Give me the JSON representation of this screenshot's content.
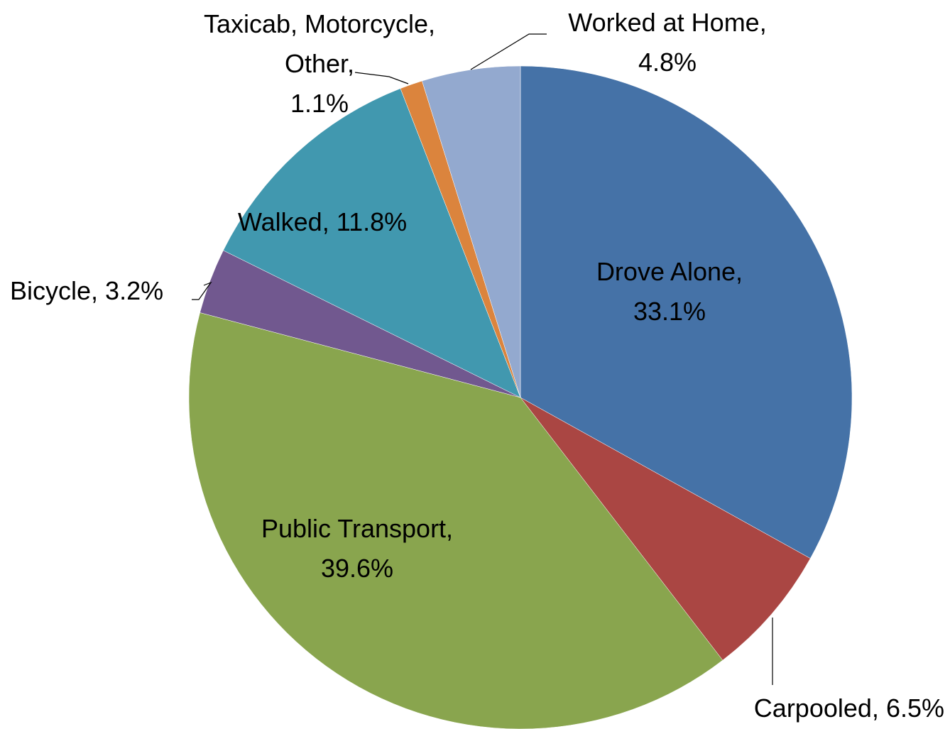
{
  "chart_data": {
    "type": "pie",
    "categories": [
      "Drove Alone,",
      "Carpooled,",
      "Public Transport,",
      "Bicycle,",
      "Walked,",
      "Taxicab, Motorcycle, Other,",
      "Worked at Home,"
    ],
    "values": [
      33.1,
      6.5,
      39.6,
      3.2,
      11.8,
      1.1,
      4.8
    ],
    "value_labels": [
      "33.1%",
      "6.5%",
      "39.6%",
      "3.2%",
      "11.8%",
      "1.1%",
      "4.8%"
    ],
    "colors": [
      "#4572a7",
      "#aa4643",
      "#89a54e",
      "#71588f",
      "#4198af",
      "#db843d",
      "#93a9cf"
    ]
  }
}
